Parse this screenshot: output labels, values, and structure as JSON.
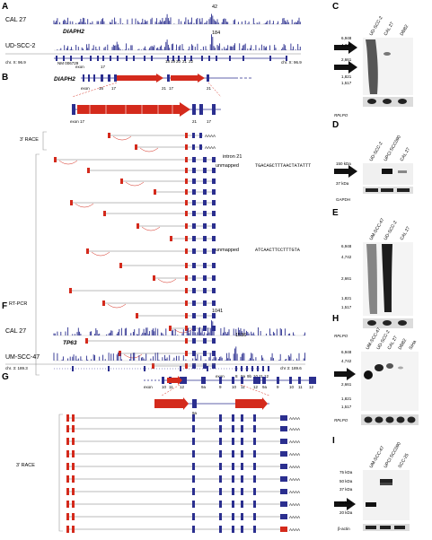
{
  "panels": {
    "A": {
      "letter": "A",
      "track1": "CAL 27",
      "track2": "UD-SCC-2",
      "peak1": "42",
      "peak2": "184",
      "gene": "DIAPH2",
      "coord_left": "chr. X: 96.9",
      "coord_right": "chr. X: 96.9",
      "refseq": "NM 006729",
      "exon_labels": [
        "exon",
        "17",
        "18",
        "19",
        "20",
        "21",
        "22"
      ]
    },
    "B": {
      "letter": "B",
      "gene": "DIAPH2",
      "exon_labels": [
        "exon",
        "16",
        "17",
        "21",
        "17",
        "21"
      ],
      "zoom_exons": [
        "exon 17",
        "21",
        "17"
      ],
      "race_label": "3' RACE",
      "rtpcr_label": "RT-PCR",
      "intron_label": "intron 21",
      "unmapped1_label": "unmapped",
      "unmapped1_seq": "TGACAGCTTTAACTATATTT",
      "unmapped2_label": "unmapped",
      "unmapped2_seq": "ATCAACTTCCTTTGTA",
      "polyA": "AAAA"
    },
    "C": {
      "letter": "C",
      "lanes": [
        "UD-SCC-2",
        "CAL 27",
        "DBB2"
      ],
      "markers": [
        "6,948",
        "4,742",
        "2,661",
        "1,821",
        "1,517"
      ],
      "loading": "RPLPO"
    },
    "D": {
      "letter": "D",
      "lanes": [
        "UD-SCC-2",
        "UPCI:SCC090",
        "CAL 27"
      ],
      "markers": [
        "150 kDa",
        "37 kDa"
      ],
      "loading": "GAPDH"
    },
    "E": {
      "letter": "E",
      "lanes": [
        "UM-SCC-47",
        "UD-SCC-2",
        "CAL 27"
      ],
      "markers": [
        "6,948",
        "4,742",
        "2,661",
        "1,821",
        "1,517"
      ],
      "loading": "RPLPO"
    },
    "F": {
      "letter": "F",
      "track1": "CAL 27",
      "track2": "UM-SCC-47",
      "peak1": "1041",
      "peak2": "1536",
      "gene": "TP63",
      "coord_left": "chr. 3: 189.3",
      "coord_right": "chr 3: 189.6",
      "exon_labels": [
        "exon",
        "8",
        "9a",
        "9b",
        "10",
        "11",
        "12"
      ]
    },
    "G": {
      "letter": "G",
      "exon_labels": [
        "exon",
        "10",
        "11",
        "12",
        "9a",
        "9",
        "10",
        "11",
        "12",
        "9a",
        "9",
        "10",
        "11",
        "12"
      ],
      "race_label": "3' RACE",
      "polyA": "AAAA"
    },
    "H": {
      "letter": "H",
      "lanes": [
        "UM-SCC-47",
        "UD-SCC-2",
        "CAL 27",
        "DBB2",
        "SiHa"
      ],
      "markers": [
        "6,948",
        "4,742",
        "2,661",
        "1,821",
        "1,517"
      ],
      "loading": "RPLPO"
    },
    "I": {
      "letter": "I",
      "lanes": [
        "UM-SCC-47",
        "UPCI:SCC090",
        "SCC-25"
      ],
      "markers": [
        "75 kDa",
        "50 kDa",
        "37 kDa",
        "25 kDa",
        "20 kDa"
      ],
      "loading": "β-actin"
    }
  },
  "colors": {
    "blue": "#2b2f8f",
    "red": "#d42a1c",
    "blot_dark": "#111111",
    "blot_light": "#e8e8e8"
  }
}
